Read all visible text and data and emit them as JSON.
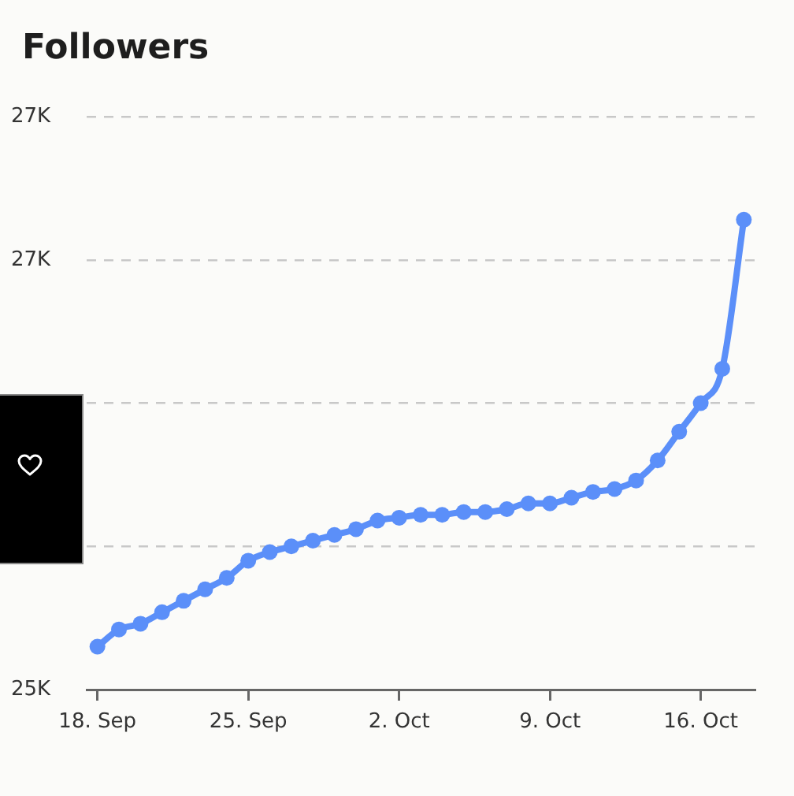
{
  "chart_data": {
    "type": "line",
    "title": "Followers",
    "x": [
      "--09-18",
      "--09-19",
      "--09-20",
      "--09-21",
      "--09-22",
      "--09-23",
      "--09-24",
      "--09-25",
      "--09-26",
      "--09-27",
      "--09-28",
      "--09-29",
      "--09-30",
      "--10-01",
      "--10-02",
      "--10-03",
      "--10-04",
      "--10-05",
      "--10-06",
      "--10-07",
      "--10-08",
      "--10-09",
      "--10-10",
      "--10-11",
      "--10-12",
      "--10-13",
      "--10-14",
      "--10-15",
      "--10-16",
      "--10-17",
      "--10-18"
    ],
    "values": [
      25150,
      25210,
      25230,
      25270,
      25310,
      25350,
      25390,
      25450,
      25480,
      25500,
      25520,
      25540,
      25560,
      25590,
      25600,
      25610,
      25610,
      25620,
      25620,
      25630,
      25650,
      25650,
      25670,
      25690,
      25700,
      25730,
      25800,
      25900,
      26000,
      26120,
      26640
    ],
    "color": "#5b8ff9",
    "xlim": [
      "--09-17T12:00",
      "--10-18T12:00"
    ],
    "xticks": [
      {
        "value": "--09-18",
        "label": "18. Sep"
      },
      {
        "value": "--09-25",
        "label": "25. Sep"
      },
      {
        "value": "--10-02",
        "label": "2. Oct"
      },
      {
        "value": "--10-09",
        "label": "9. Oct"
      },
      {
        "value": "--10-16",
        "label": "16. Oct"
      }
    ],
    "ylim": [
      25000,
      27000
    ],
    "yticks": [
      {
        "value": 25000,
        "label": "25K"
      },
      {
        "value": 25500,
        "label": null
      },
      {
        "value": 26000,
        "label": null
      },
      {
        "value": 26500,
        "label": "27K"
      },
      {
        "value": 27000,
        "label": "27K"
      }
    ],
    "grid": "y",
    "marker": "circle",
    "line_style": "solid"
  }
}
